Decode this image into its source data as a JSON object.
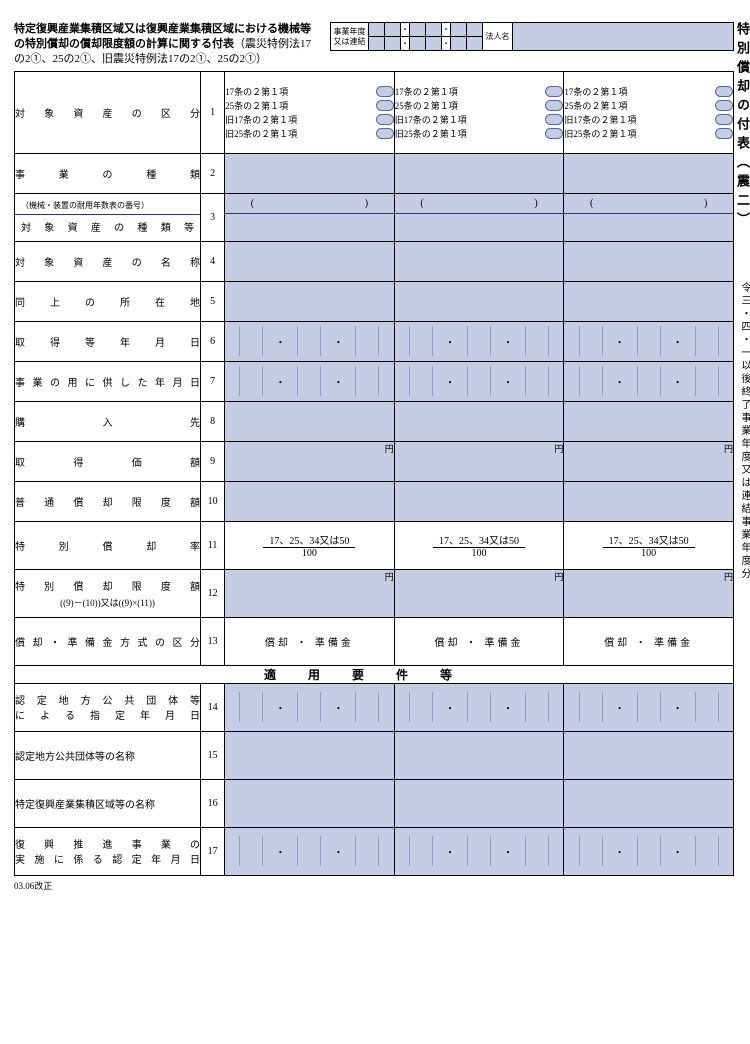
{
  "title": {
    "line1_bold": "特定復興産業集積区域又は復興産業集積区域における機械等",
    "line2_bold": "の特別償却の償却限度額の計算に関する付表",
    "line2_normal": "（震災特例法17",
    "line3": "の2①、25の2①、旧震災特例法17の2①、25の2①）"
  },
  "meta": {
    "row1_label": "事業年度\n又は連結",
    "row2_label": "事業年度",
    "corp_label": "法人名"
  },
  "side_title": "特別償却の付表（震二）",
  "side_note": "令三・四・一以後終了事業年度又は連結事業年度分",
  "refs": {
    "r1": "17条の２第１項",
    "r2": "25条の２第１項",
    "r3": "旧17条の２第１項",
    "r4": "旧25条の２第１項"
  },
  "rows": {
    "1": "対象資産の区分",
    "2": "事業の種類",
    "3a": "（機械・装置の耐用年数表の番号）",
    "3b": "対象資産の種類等",
    "4": "対象資産の名称",
    "5": "同上の所在地",
    "6": "取得等年月日",
    "7": "事業の用に供した年月日",
    "8": "購入先",
    "9": "取得価額",
    "10": "普通償却限度額",
    "11": "特別償却率",
    "12a": "特別償却限度額",
    "12b": "((9)－(10))又は((9)×(11))",
    "13": "償却・準備金方式の区分",
    "14a": "認定地方公共団体等",
    "14b": "による指定年月日",
    "15": "認定地方公共団体等の名称",
    "16": "特定復興産業集積区域等の名称",
    "17a": "復興推進事業の",
    "17b": "実施に係る認定年月日"
  },
  "section_header": "適用要件等",
  "frac": {
    "top": "17、25、34又は50",
    "bot": "100"
  },
  "choice": {
    "a": "償却",
    "b": "準備金"
  },
  "yen": "円",
  "dot": "・",
  "footer": "03.06改正"
}
